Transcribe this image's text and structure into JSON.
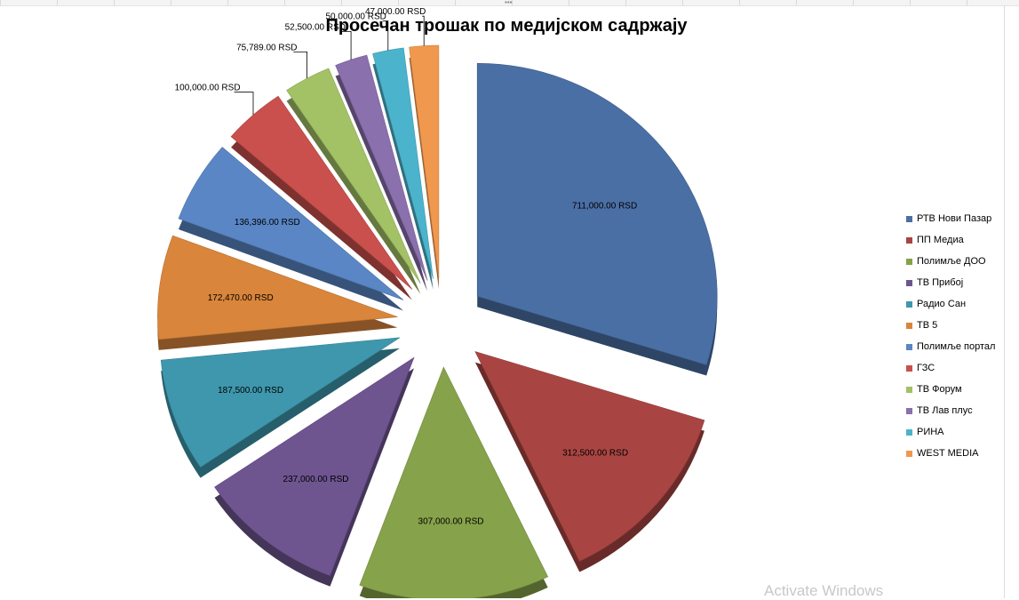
{
  "chart_data": {
    "type": "pie",
    "title": "Просечан трошак по медијском садржају",
    "legend_position": "right",
    "exploded": true,
    "style": "3d",
    "slices": [
      {
        "name": "РТВ Нови Пазар",
        "value": 711000,
        "label": "711,000.00 RSD",
        "color": "#4a6fa5"
      },
      {
        "name": "ПП Медиа",
        "value": 312500,
        "label": "312,500.00 RSD",
        "color": "#a84542"
      },
      {
        "name": "Полимље ДОО",
        "value": 307000,
        "label": "307,000.00 RSD",
        "color": "#86a24a"
      },
      {
        "name": "ТВ Прибој",
        "value": 237000,
        "label": "237,000.00 RSD",
        "color": "#6e5590"
      },
      {
        "name": "Радио Сан",
        "value": 187500,
        "label": "187,500.00 RSD",
        "color": "#3f97ad"
      },
      {
        "name": "ТВ 5",
        "value": 172470,
        "label": "172,470.00 RSD",
        "color": "#d9853b"
      },
      {
        "name": "Полимље портал",
        "value": 136396,
        "label": "136,396.00 RSD",
        "color": "#5a86c5"
      },
      {
        "name": "ГЗС",
        "value": 100000,
        "label": "100,000.00 RSD",
        "color": "#c9504c"
      },
      {
        "name": "ТВ Форум",
        "value": 75789,
        "label": "75,789.00 RSD",
        "color": "#a3c165"
      },
      {
        "name": "ТВ Лав плус",
        "value": 52500,
        "label": "52,500.00 RSD",
        "color": "#8a70ad"
      },
      {
        "name": "РИНА",
        "value": 50000,
        "label": "50,000.00 RSD",
        "color": "#4cb3cc"
      },
      {
        "name": "WEST MEDIA",
        "value": 47000,
        "label": "47,000.00 RSD",
        "color": "#f0984e"
      }
    ]
  },
  "watermark": "Activate Windows"
}
